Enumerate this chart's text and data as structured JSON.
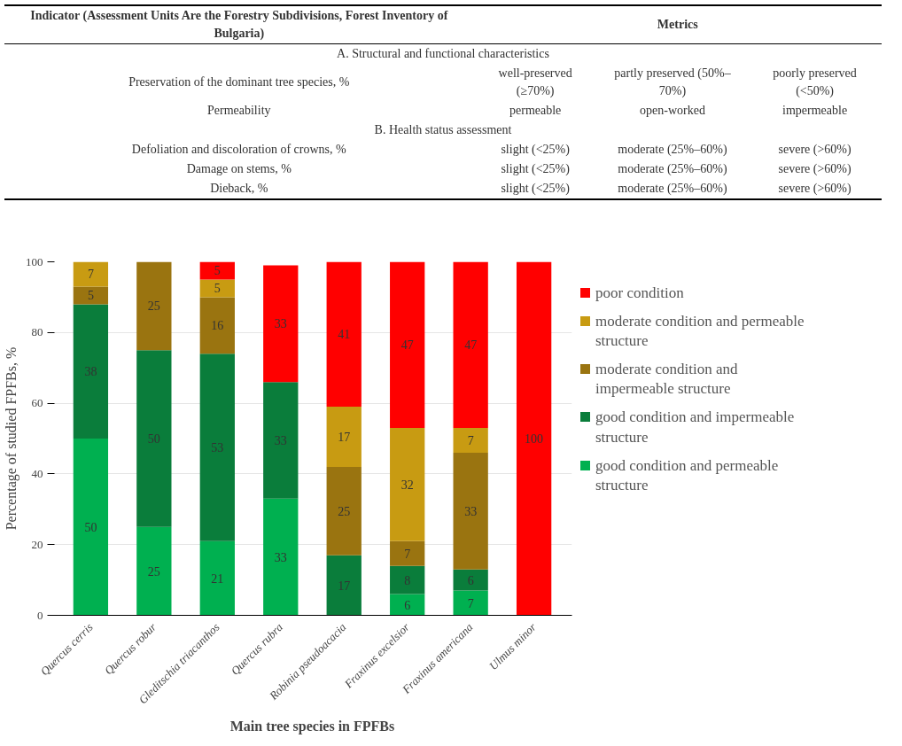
{
  "chart_data": {
    "type": "bar",
    "stacked": true,
    "xlabel": "Main tree species in FPFBs",
    "ylabel": "Percentage of studied FPFBs, %",
    "categories": [
      "Quercus cerris",
      "Quercus robur",
      "Gleditschia triacanthos",
      "Quercus rubra",
      "Robinia pseudoacacia",
      "Fraxinus excelsior",
      "Fraxinus americana",
      "Ulmus minor"
    ],
    "series": [
      {
        "name": "good condition and permeable structure",
        "color": "#00b050",
        "values": [
          50,
          25,
          21,
          33,
          null,
          6,
          7,
          null
        ]
      },
      {
        "name": "good condition and impermeable structure",
        "color": "#0a7d3b",
        "values": [
          38,
          50,
          53,
          33,
          17,
          8,
          6,
          null
        ]
      },
      {
        "name": "moderate condition and impermeable structure",
        "color": "#9a7410",
        "values": [
          5,
          25,
          16,
          null,
          25,
          7,
          33,
          null
        ]
      },
      {
        "name": "moderate condition and permeable structure",
        "color": "#c89b12",
        "values": [
          7,
          null,
          5,
          null,
          17,
          32,
          7,
          null
        ]
      },
      {
        "name": "poor condition",
        "color": "#ff0000",
        "values": [
          null,
          null,
          5,
          33,
          41,
          47,
          47,
          100
        ]
      }
    ],
    "ylim": [
      0,
      100
    ],
    "yticks": [
      0,
      20,
      40,
      60,
      80,
      100
    ],
    "grid": "y",
    "legend": "right",
    "data_labels": true,
    "annotations": [
      "Indicator (Assessment Units Are the Forestry Subdivisions, Forest Inventory of Bulgaria)",
      "Metrics",
      "A. Structural and functional characteristics",
      "Preservation of the dominant tree species, %",
      "well-preserved (≥70%)",
      "partly preserved (50%–70%)",
      "poorly preserved (<50%)",
      "Permeability",
      "permeable",
      "open-worked",
      "impermeable",
      "B. Health status assessment",
      "Defoliation and discoloration of crowns, %",
      "slight (<25%)",
      "moderate (25%–60%)",
      "severe (>60%)",
      "Damage on stems, %",
      "slight (<25%)",
      "moderate (25%–60%)",
      "severe (>60%)",
      "Dieback, %",
      "slight (<25%)",
      "moderate (25%–60%)",
      "severe (>60%)"
    ]
  }
}
